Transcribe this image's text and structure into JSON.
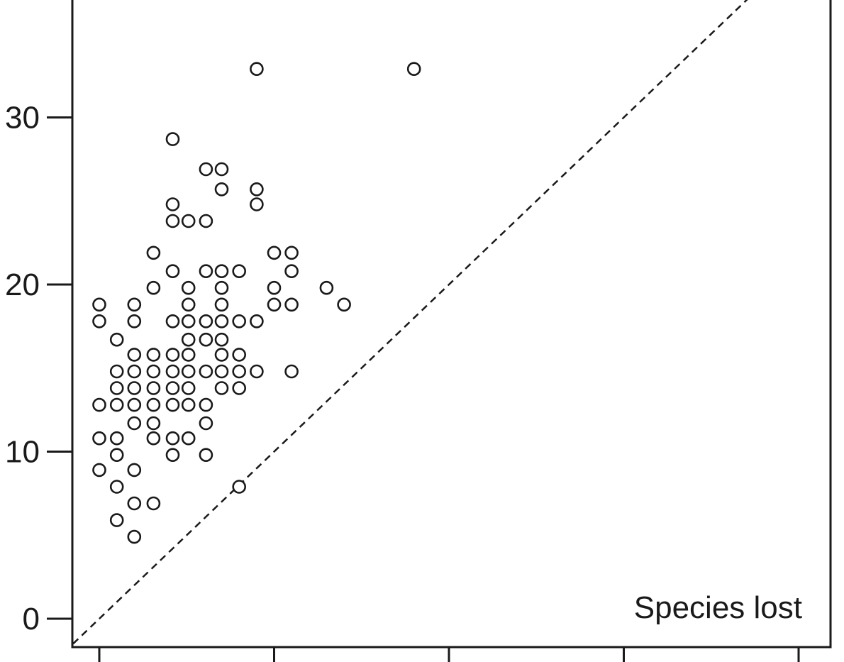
{
  "chart_data": {
    "type": "scatter",
    "title": "",
    "xlabel": "",
    "ylabel": "",
    "annotation": "Species lost",
    "ylim": [
      -1.5,
      37.5
    ],
    "xlim": [
      -1.5,
      37.5
    ],
    "y_ticks": [
      0,
      10,
      20,
      30
    ],
    "y_tick_labels": [
      "0",
      "10",
      "20",
      "30"
    ],
    "x_ticks": [
      0,
      10,
      20,
      30,
      40
    ],
    "x_tick_labels": [
      "",
      "",
      "",
      "",
      ""
    ],
    "grid": false,
    "legend": "none",
    "reference_line": "y = x",
    "reference_line_style": "dashed",
    "marker": "open circle",
    "colors": {
      "ink": "#1a1a1a",
      "background": "#ffffff",
      "marker_fill": "#ffffff"
    },
    "points": [
      [
        9.0,
        32.9
      ],
      [
        18.0,
        32.9
      ],
      [
        4.2,
        28.7
      ],
      [
        6.1,
        26.9
      ],
      [
        7.0,
        26.9
      ],
      [
        7.0,
        25.7
      ],
      [
        9.0,
        25.7
      ],
      [
        4.2,
        24.8
      ],
      [
        9.0,
        24.8
      ],
      [
        4.2,
        23.8
      ],
      [
        5.1,
        23.8
      ],
      [
        6.1,
        23.8
      ],
      [
        3.1,
        21.9
      ],
      [
        10.0,
        21.9
      ],
      [
        11.0,
        21.9
      ],
      [
        4.2,
        20.8
      ],
      [
        6.1,
        20.8
      ],
      [
        7.0,
        20.8
      ],
      [
        8.0,
        20.8
      ],
      [
        11.0,
        20.8
      ],
      [
        3.1,
        19.8
      ],
      [
        5.1,
        19.8
      ],
      [
        7.0,
        19.8
      ],
      [
        10.0,
        19.8
      ],
      [
        13.0,
        19.8
      ],
      [
        0.0,
        18.8
      ],
      [
        2.0,
        18.8
      ],
      [
        5.1,
        18.8
      ],
      [
        7.0,
        18.8
      ],
      [
        10.0,
        18.8
      ],
      [
        11.0,
        18.8
      ],
      [
        14.0,
        18.8
      ],
      [
        0.0,
        17.8
      ],
      [
        2.0,
        17.8
      ],
      [
        4.2,
        17.8
      ],
      [
        5.1,
        17.8
      ],
      [
        6.1,
        17.8
      ],
      [
        7.0,
        17.8
      ],
      [
        8.0,
        17.8
      ],
      [
        9.0,
        17.8
      ],
      [
        1.0,
        16.7
      ],
      [
        5.1,
        16.7
      ],
      [
        6.1,
        16.7
      ],
      [
        7.0,
        16.7
      ],
      [
        2.0,
        15.8
      ],
      [
        3.1,
        15.8
      ],
      [
        4.2,
        15.8
      ],
      [
        5.1,
        15.8
      ],
      [
        7.0,
        15.8
      ],
      [
        8.0,
        15.8
      ],
      [
        1.0,
        14.8
      ],
      [
        2.0,
        14.8
      ],
      [
        3.1,
        14.8
      ],
      [
        4.2,
        14.8
      ],
      [
        5.1,
        14.8
      ],
      [
        6.1,
        14.8
      ],
      [
        7.0,
        14.8
      ],
      [
        8.0,
        14.8
      ],
      [
        9.0,
        14.8
      ],
      [
        11.0,
        14.8
      ],
      [
        1.0,
        13.8
      ],
      [
        2.0,
        13.8
      ],
      [
        3.1,
        13.8
      ],
      [
        4.2,
        13.8
      ],
      [
        5.1,
        13.8
      ],
      [
        7.0,
        13.8
      ],
      [
        8.0,
        13.8
      ],
      [
        0.0,
        12.8
      ],
      [
        1.0,
        12.8
      ],
      [
        2.0,
        12.8
      ],
      [
        3.1,
        12.8
      ],
      [
        4.2,
        12.8
      ],
      [
        5.1,
        12.8
      ],
      [
        6.1,
        12.8
      ],
      [
        2.0,
        11.7
      ],
      [
        3.1,
        11.7
      ],
      [
        6.1,
        11.7
      ],
      [
        0.0,
        10.8
      ],
      [
        1.0,
        10.8
      ],
      [
        3.1,
        10.8
      ],
      [
        4.2,
        10.8
      ],
      [
        5.1,
        10.8
      ],
      [
        1.0,
        9.8
      ],
      [
        4.2,
        9.8
      ],
      [
        6.1,
        9.8
      ],
      [
        0.0,
        8.9
      ],
      [
        2.0,
        8.9
      ],
      [
        1.0,
        7.9
      ],
      [
        8.0,
        7.9
      ],
      [
        2.0,
        6.9
      ],
      [
        3.1,
        6.9
      ],
      [
        1.0,
        5.9
      ],
      [
        2.0,
        4.9
      ]
    ]
  }
}
